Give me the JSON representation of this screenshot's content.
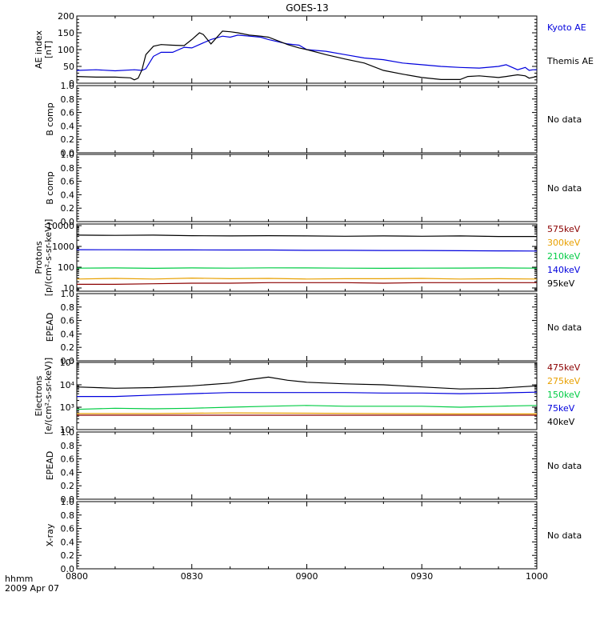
{
  "title": "GOES-13",
  "time_axis": {
    "xlim": [
      "08:00",
      "10:00"
    ],
    "tick_labels": [
      "0800",
      "0830",
      "0900",
      "0930",
      "1000"
    ],
    "corner_label": "hhmm",
    "date_label": "2009 Apr 07"
  },
  "chart_data": [
    {
      "type": "line",
      "ylabel": [
        "AE index",
        "[nT]"
      ],
      "ylim": [
        0,
        200
      ],
      "yticks": [
        "0",
        "50",
        "100",
        "150",
        "200"
      ],
      "series": [
        {
          "name": "Kyoto AE",
          "color": "#0000dd",
          "x": [
            "08:00",
            "08:05",
            "08:10",
            "08:15",
            "08:17",
            "08:18",
            "08:20",
            "08:22",
            "08:25",
            "08:28",
            "08:30",
            "08:32",
            "08:35",
            "08:38",
            "08:40",
            "08:42",
            "08:45",
            "08:48",
            "08:50",
            "08:55",
            "08:58",
            "09:00",
            "09:05",
            "09:10",
            "09:15",
            "09:20",
            "09:25",
            "09:30",
            "09:35",
            "09:40",
            "09:45",
            "09:50",
            "09:52",
            "09:55",
            "09:57",
            "09:58",
            "09:59",
            "10:00"
          ],
          "y": [
            38,
            40,
            37,
            40,
            38,
            43,
            80,
            92,
            92,
            107,
            105,
            115,
            130,
            140,
            137,
            143,
            140,
            137,
            130,
            117,
            113,
            100,
            95,
            85,
            75,
            70,
            60,
            55,
            50,
            47,
            45,
            50,
            55,
            40,
            47,
            38,
            40,
            40
          ]
        },
        {
          "name": "Themis AE",
          "color": "#000000",
          "x": [
            "08:00",
            "08:05",
            "08:10",
            "08:14",
            "08:15",
            "08:16",
            "08:17",
            "08:18",
            "08:20",
            "08:22",
            "08:25",
            "08:28",
            "08:30",
            "08:32",
            "08:33",
            "08:35",
            "08:38",
            "08:40",
            "08:42",
            "08:45",
            "08:48",
            "08:50",
            "08:55",
            "08:58",
            "09:00",
            "09:05",
            "09:10",
            "09:15",
            "09:20",
            "09:25",
            "09:30",
            "09:35",
            "09:40",
            "09:42",
            "09:45",
            "09:50",
            "09:52",
            "09:55",
            "09:57",
            "09:58",
            "10:00"
          ],
          "y": [
            20,
            18,
            18,
            16,
            10,
            15,
            40,
            85,
            110,
            115,
            113,
            112,
            130,
            150,
            145,
            117,
            155,
            153,
            150,
            143,
            140,
            137,
            115,
            105,
            100,
            85,
            72,
            60,
            38,
            27,
            17,
            11,
            11,
            20,
            22,
            17,
            20,
            25,
            22,
            15,
            20
          ]
        }
      ]
    },
    {
      "type": "line",
      "ylabel": [
        "B comp"
      ],
      "ylim": [
        0,
        1
      ],
      "yticks": [
        "0.0",
        "0.2",
        "0.4",
        "0.6",
        "0.8",
        "1.0"
      ],
      "note": "No data",
      "series": []
    },
    {
      "type": "line",
      "ylabel": [
        "B comp"
      ],
      "ylim": [
        0,
        1
      ],
      "yticks": [
        "0.0",
        "0.2",
        "0.4",
        "0.6",
        "0.8",
        "1.0"
      ],
      "note": "No data",
      "series": []
    },
    {
      "type": "line",
      "ylabel": [
        "Protons",
        "[p/(cm²-s-sr-keV)]"
      ],
      "yscale": "log",
      "ylim": [
        7,
        12000
      ],
      "yticks": [
        "10",
        "100",
        "1000",
        "10000"
      ],
      "series": [
        {
          "name": "575keV",
          "color": "#8b0000",
          "x": [
            "08:00",
            "08:10",
            "08:20",
            "08:30",
            "08:40",
            "08:50",
            "09:00",
            "09:10",
            "09:20",
            "09:30",
            "09:40",
            "09:50",
            "10:00"
          ],
          "y": [
            15,
            15,
            16,
            17,
            17,
            18,
            18,
            18,
            17,
            18,
            18,
            18,
            18
          ]
        },
        {
          "name": "300keV",
          "color": "#e8a000",
          "x": [
            "08:00",
            "08:10",
            "08:20",
            "08:30",
            "08:40",
            "08:50",
            "09:00",
            "09:10",
            "09:20",
            "09:30",
            "09:40",
            "09:50",
            "10:00"
          ],
          "y": [
            27,
            29,
            27,
            30,
            28,
            29,
            27,
            28,
            28,
            29,
            27,
            28,
            27
          ]
        },
        {
          "name": "210keV",
          "color": "#00cc44",
          "x": [
            "08:00",
            "08:10",
            "08:20",
            "08:30",
            "08:40",
            "08:50",
            "09:00",
            "09:10",
            "09:20",
            "09:30",
            "09:40",
            "09:50",
            "10:00"
          ],
          "y": [
            90,
            92,
            88,
            92,
            90,
            93,
            92,
            90,
            88,
            90,
            91,
            92,
            90
          ]
        },
        {
          "name": "140keV",
          "color": "#0000dd",
          "x": [
            "08:00",
            "08:10",
            "08:20",
            "08:30",
            "08:40",
            "08:50",
            "09:00",
            "09:10",
            "09:20",
            "09:30",
            "09:40",
            "09:50",
            "10:00"
          ],
          "y": [
            700,
            690,
            680,
            680,
            670,
            670,
            650,
            650,
            640,
            640,
            620,
            610,
            600
          ]
        },
        {
          "name": "95keV",
          "color": "#000000",
          "x": [
            "08:00",
            "08:10",
            "08:20",
            "08:30",
            "08:40",
            "08:50",
            "09:00",
            "09:10",
            "09:20",
            "09:30",
            "09:40",
            "09:50",
            "10:00"
          ],
          "y": [
            3500,
            3400,
            3500,
            3300,
            3200,
            3300,
            3200,
            3100,
            3200,
            3100,
            3200,
            3000,
            3000
          ]
        }
      ]
    },
    {
      "type": "line",
      "ylabel": [
        "EPEAD"
      ],
      "ylim": [
        0,
        1
      ],
      "yticks": [
        "0.0",
        "0.2",
        "0.4",
        "0.6",
        "0.8",
        "1.0"
      ],
      "note": "No data",
      "series": []
    },
    {
      "type": "line",
      "ylabel": [
        "Electrons",
        "[e/(cm²-s-sr-keV)]"
      ],
      "yscale": "log",
      "ylim": [
        100,
        100000
      ],
      "yticks": [
        "10²",
        "10³",
        "10⁴",
        "10⁵"
      ],
      "series": [
        {
          "name": "475keV",
          "color": "#8b0000",
          "x": [
            "08:00",
            "08:20",
            "08:40",
            "09:00",
            "09:20",
            "09:40",
            "10:00"
          ],
          "y": [
            440,
            440,
            440,
            440,
            440,
            440,
            440
          ]
        },
        {
          "name": "275keV",
          "color": "#e8a000",
          "x": [
            "08:00",
            "08:20",
            "08:40",
            "09:00",
            "09:20",
            "09:40",
            "10:00"
          ],
          "y": [
            520,
            520,
            560,
            540,
            520,
            500,
            500
          ]
        },
        {
          "name": "150keV",
          "color": "#00cc44",
          "x": [
            "08:00",
            "08:10",
            "08:20",
            "08:30",
            "08:40",
            "08:50",
            "09:00",
            "09:10",
            "09:20",
            "09:30",
            "09:40",
            "09:50",
            "10:00"
          ],
          "y": [
            800,
            900,
            850,
            900,
            1000,
            1100,
            1200,
            1100,
            1100,
            1100,
            1000,
            1100,
            1200
          ]
        },
        {
          "name": "75keV",
          "color": "#0000dd",
          "x": [
            "08:00",
            "08:10",
            "08:20",
            "08:30",
            "08:40",
            "08:50",
            "09:00",
            "09:10",
            "09:20",
            "09:30",
            "09:40",
            "09:50",
            "10:00"
          ],
          "y": [
            3000,
            3000,
            3500,
            4000,
            4500,
            4500,
            4500,
            4500,
            4300,
            4300,
            4000,
            4300,
            4700
          ]
        },
        {
          "name": "40keV",
          "color": "#000000",
          "x": [
            "08:00",
            "08:10",
            "08:20",
            "08:30",
            "08:40",
            "08:45",
            "08:50",
            "08:55",
            "09:00",
            "09:10",
            "09:20",
            "09:30",
            "09:40",
            "09:50",
            "10:00"
          ],
          "y": [
            8000,
            7000,
            7500,
            9000,
            12000,
            17000,
            22000,
            16000,
            13000,
            11000,
            10000,
            8000,
            6500,
            7000,
            9000
          ]
        }
      ]
    },
    {
      "type": "line",
      "ylabel": [
        "EPEAD"
      ],
      "ylim": [
        0,
        1
      ],
      "yticks": [
        "0.0",
        "0.2",
        "0.4",
        "0.6",
        "0.8",
        "1.0"
      ],
      "note": "No data",
      "series": []
    },
    {
      "type": "line",
      "ylabel": [
        "X-ray"
      ],
      "ylim": [
        0,
        1
      ],
      "yticks": [
        "0.0",
        "0.2",
        "0.4",
        "0.6",
        "0.8",
        "1.0"
      ],
      "note": "No data",
      "series": []
    }
  ]
}
